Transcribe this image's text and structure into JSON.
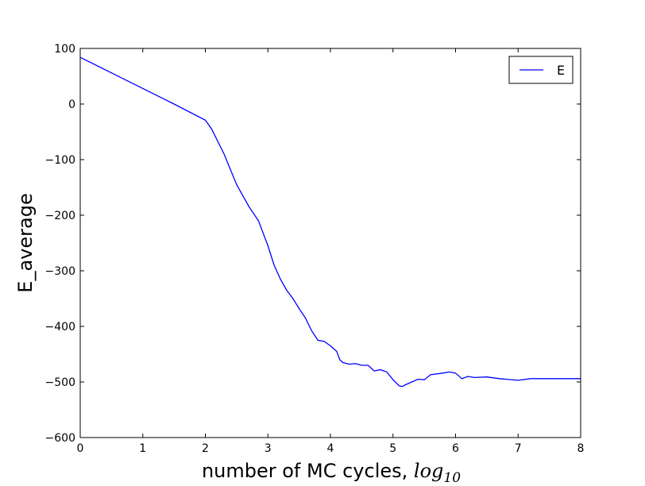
{
  "chart_data": {
    "type": "line",
    "xlabel_text": "number of MC cycles, ",
    "xlabel_math": "log",
    "xlabel_math_sub": "10",
    "ylabel": "E_average",
    "xlim": [
      0,
      8
    ],
    "ylim": [
      -600,
      100
    ],
    "xticks": [
      0,
      1,
      2,
      3,
      4,
      5,
      6,
      7,
      8
    ],
    "yticks": [
      100,
      0,
      -100,
      -200,
      -300,
      -400,
      -500,
      -600
    ],
    "xtick_labels": [
      "0",
      "1",
      "2",
      "3",
      "4",
      "5",
      "6",
      "7",
      "8"
    ],
    "ytick_labels": [
      "100",
      "0",
      "−100",
      "−200",
      "−300",
      "−400",
      "−500",
      "−600"
    ],
    "grid": false,
    "legend_position": "top-right",
    "series": [
      {
        "name": "E",
        "color": "#0000ff",
        "x": [
          0,
          0.5,
          1,
          1.5,
          2,
          2.1,
          2.3,
          2.5,
          2.7,
          2.85,
          3.0,
          3.1,
          3.2,
          3.3,
          3.4,
          3.5,
          3.6,
          3.7,
          3.8,
          3.9,
          4.0,
          4.1,
          4.15,
          4.2,
          4.3,
          4.4,
          4.5,
          4.6,
          4.7,
          4.8,
          4.9,
          5.0,
          5.1,
          5.15,
          5.2,
          5.3,
          5.4,
          5.5,
          5.6,
          5.8,
          5.9,
          6.0,
          6.1,
          6.2,
          6.3,
          6.5,
          6.7,
          7.0,
          7.2,
          7.5,
          7.8,
          8.0
        ],
        "y": [
          84,
          56,
          28,
          0,
          -29,
          -45,
          -90,
          -145,
          -185,
          -210,
          -255,
          -290,
          -315,
          -335,
          -350,
          -368,
          -385,
          -408,
          -425,
          -427,
          -435,
          -445,
          -460,
          -465,
          -468,
          -467,
          -470,
          -470,
          -480,
          -478,
          -482,
          -496,
          -507,
          -508,
          -505,
          -500,
          -495,
          -496,
          -487,
          -484,
          -482,
          -484,
          -494,
          -490,
          -492,
          -491,
          -494,
          -497,
          -494,
          -494,
          -494,
          -494
        ]
      }
    ]
  }
}
